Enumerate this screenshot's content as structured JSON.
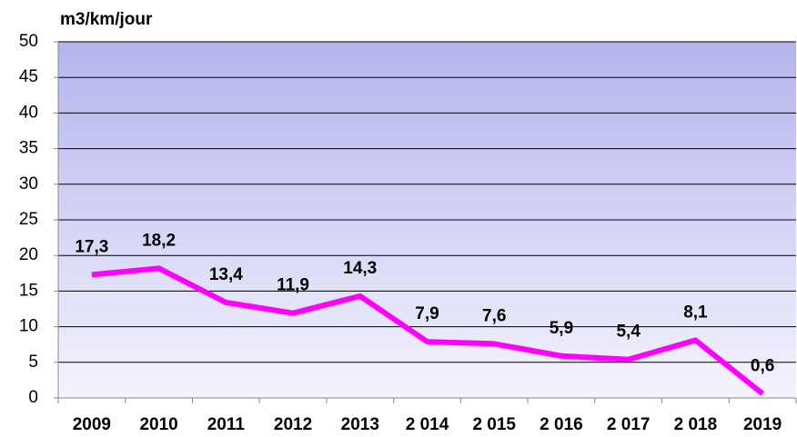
{
  "chart_data": {
    "type": "line",
    "y_axis_label": "m3/km/jour",
    "categories": [
      "2009",
      "2010",
      "2011",
      "2012",
      "2013",
      "2 014",
      "2 015",
      "2 016",
      "2 017",
      "2 018",
      "2019"
    ],
    "series": [
      {
        "name": "m3/km/jour",
        "color": "#ff00ff",
        "values": [
          17.3,
          18.2,
          13.4,
          11.9,
          14.3,
          7.9,
          7.6,
          5.9,
          5.4,
          8.1,
          0.6
        ],
        "value_labels": [
          "17,3",
          "18,2",
          "13,4",
          "11,9",
          "14,3",
          "7,9",
          "7,6",
          "5,9",
          "5,4",
          "8,1",
          "0,6"
        ]
      }
    ],
    "ylim": [
      0,
      50
    ],
    "yticks": [
      0,
      5,
      10,
      15,
      20,
      25,
      30,
      35,
      40,
      45,
      50
    ],
    "grid": true
  }
}
